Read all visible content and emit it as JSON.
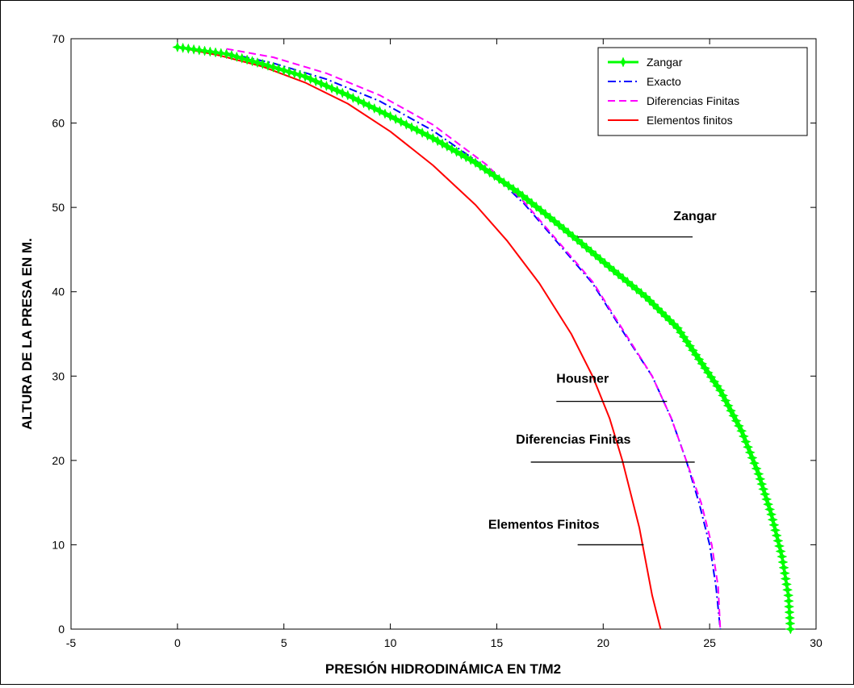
{
  "chart_data": {
    "type": "line",
    "title": "",
    "xlabel": "PRESIÓN HIDRODINÁMICA EN T/M2",
    "ylabel": "ALTURA DE LA PRESA EN M.",
    "xlim": [
      -5,
      30
    ],
    "ylim": [
      0,
      70
    ],
    "xticks": [
      -5,
      0,
      5,
      10,
      15,
      20,
      25,
      30
    ],
    "yticks": [
      0,
      10,
      20,
      30,
      40,
      50,
      60,
      70
    ],
    "grid": false,
    "legend_position": "top-right",
    "series": [
      {
        "name": "Zangar",
        "color": "#00ff00",
        "style": "solid-star-markers",
        "x": [
          0,
          2.3,
          4.0,
          6.0,
          8.0,
          10.0,
          12.0,
          14.0,
          16.0,
          17.5,
          19.0,
          20.5,
          22.0,
          23.5,
          24.5,
          25.5,
          26.5,
          27.3,
          27.9,
          28.4,
          28.7,
          28.8
        ],
        "y": [
          69,
          68.2,
          67.0,
          65.5,
          63.3,
          60.8,
          58.2,
          55.3,
          51.8,
          48.8,
          45.7,
          42.5,
          39.4,
          35.7,
          32.0,
          28.3,
          23.5,
          18.4,
          13.6,
          8.6,
          4.0,
          0
        ]
      },
      {
        "name": "Exacto",
        "color": "#0000ff",
        "style": "dash-dot",
        "x": [
          0,
          2.3,
          4.5,
          7.0,
          9.5,
          12.0,
          14.5,
          16.3,
          17.8,
          19.5,
          21.0,
          22.3,
          23.2,
          23.9,
          24.5,
          25.0,
          25.3,
          25.5
        ],
        "y": [
          69,
          68.3,
          67.1,
          65.2,
          62.6,
          59.1,
          54.7,
          50.4,
          46.0,
          41.0,
          35.0,
          30.0,
          25.0,
          20.0,
          15.0,
          10.0,
          5.0,
          0
        ]
      },
      {
        "name": "Diferencias Finitas",
        "color": "#ff00ff",
        "style": "dashed",
        "x": [
          2.3,
          4.5,
          7.0,
          9.5,
          12.0,
          14.5,
          16.3,
          17.8,
          19.5,
          21.0,
          22.3,
          23.2,
          23.9,
          24.6,
          25.1,
          25.4,
          25.5
        ],
        "y": [
          68.8,
          67.8,
          65.9,
          63.3,
          59.8,
          55.1,
          50.6,
          46.2,
          41.2,
          35.2,
          30.0,
          25.0,
          20.0,
          15.0,
          10.0,
          5.0,
          0
        ]
      },
      {
        "name": "Elementos finitos",
        "color": "#ff0000",
        "style": "solid",
        "x": [
          0,
          2.0,
          4.0,
          6.0,
          8.0,
          10.0,
          12.0,
          14.0,
          15.5,
          17.0,
          18.5,
          19.5,
          20.3,
          20.9,
          21.3,
          21.7,
          22.0,
          22.3,
          22.5,
          22.7
        ],
        "y": [
          69,
          68.0,
          66.7,
          64.8,
          62.3,
          59.0,
          55.0,
          50.3,
          46.0,
          41.0,
          35.0,
          30.0,
          25.0,
          20.0,
          16.0,
          12.0,
          8.0,
          4.0,
          2.0,
          0
        ]
      }
    ],
    "annotations": [
      {
        "text": "Zangar",
        "tx": 23.3,
        "ty": 48.5,
        "lx1": 18.8,
        "lx2": 24.2,
        "ly": 46.5
      },
      {
        "text": "Housner",
        "tx": 17.8,
        "ty": 29.2,
        "lx1": 17.8,
        "lx2": 23.0,
        "ly": 27.0
      },
      {
        "text": "Diferencias Finitas",
        "tx": 15.9,
        "ty": 22.0,
        "lx1": 16.6,
        "lx2": 24.3,
        "ly": 19.8
      },
      {
        "text": "Elementos Finitos",
        "tx": 14.6,
        "ty": 11.9,
        "lx1": 18.8,
        "lx2": 21.9,
        "ly": 10.0
      }
    ]
  }
}
